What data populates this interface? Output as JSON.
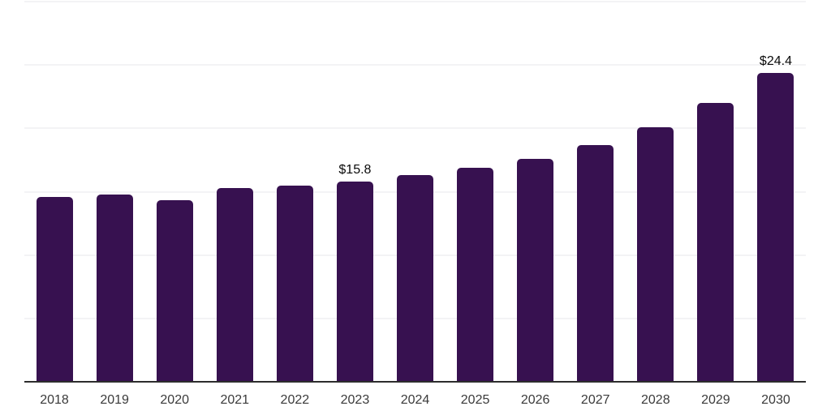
{
  "chart_data": {
    "type": "bar",
    "title": "",
    "xlabel": "",
    "ylabel": "",
    "categories": [
      "2018",
      "2019",
      "2020",
      "2021",
      "2022",
      "2023",
      "2024",
      "2025",
      "2026",
      "2027",
      "2028",
      "2029",
      "2030"
    ],
    "values": [
      14.6,
      14.8,
      14.3,
      15.3,
      15.5,
      15.8,
      16.3,
      16.9,
      17.6,
      18.7,
      20.1,
      22.0,
      24.4
    ],
    "data_labels": {
      "2023": "$15.8",
      "2030": "$24.4"
    },
    "ylim": [
      0,
      30
    ],
    "gridline_step": 5,
    "grid": true,
    "legend": "none",
    "y_tick_labels_visible": false,
    "bar_color": "#371150",
    "grid_color": "#f3f3f5",
    "axis_color": "#2d2d2d",
    "tick_color": "#3a3a3a",
    "value_label_color": "#0a0a0a"
  }
}
